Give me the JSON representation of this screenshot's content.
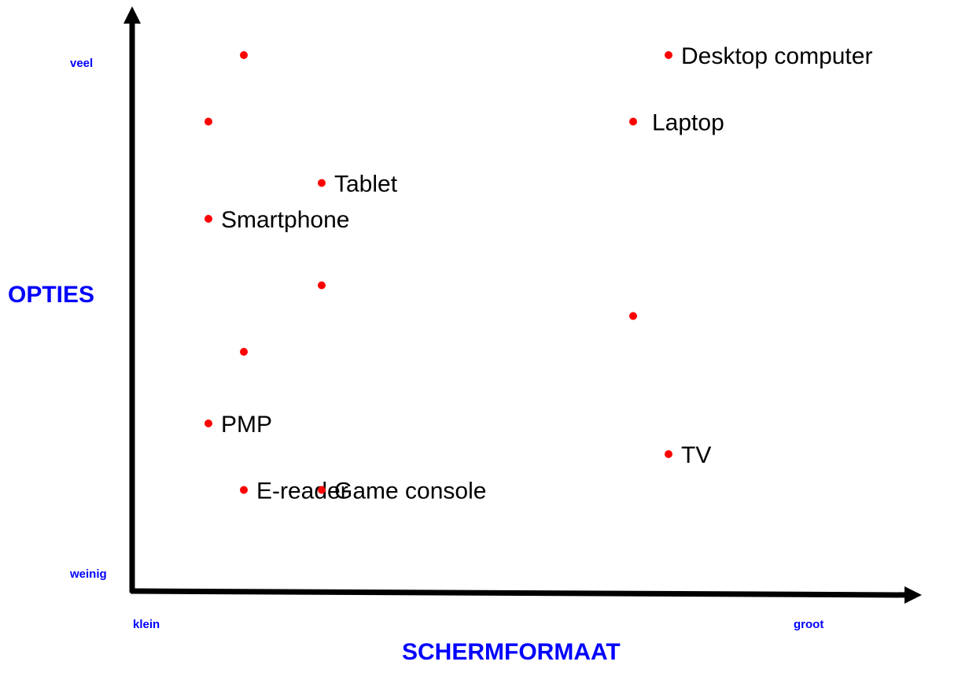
{
  "chart_data": {
    "type": "scatter",
    "xlabel": "SCHERMFORMAAT",
    "ylabel": "OPTIES",
    "x_min_label": "klein",
    "x_max_label": "groot",
    "y_min_label": "weinig",
    "y_max_label": "veel",
    "xlim": [
      0,
      10
    ],
    "ylim": [
      0,
      10
    ],
    "grid": false,
    "legend": "none",
    "colors": {
      "axis": "#000000",
      "axis_label": "#0000ff",
      "point": "#ff0000",
      "point_label": "#000000"
    },
    "points": [
      {
        "x": 1.5,
        "y": 10,
        "label": ""
      },
      {
        "x": 7.5,
        "y": 10,
        "label": "Desktop computer"
      },
      {
        "x": 1.0,
        "y": 8.7,
        "label": ""
      },
      {
        "x": 7.0,
        "y": 8.7,
        "label": "Laptop"
      },
      {
        "x": 2.6,
        "y": 7.5,
        "label": "Tablet"
      },
      {
        "x": 1.0,
        "y": 6.8,
        "label": "Smartphone"
      },
      {
        "x": 2.6,
        "y": 5.5,
        "label": ""
      },
      {
        "x": 7.0,
        "y": 4.9,
        "label": ""
      },
      {
        "x": 1.5,
        "y": 4.2,
        "label": ""
      },
      {
        "x": 1.0,
        "y": 2.8,
        "label": "PMP"
      },
      {
        "x": 7.5,
        "y": 2.2,
        "label": "TV"
      },
      {
        "x": 1.5,
        "y": 1.5,
        "label": "E-reader"
      },
      {
        "x": 2.6,
        "y": 1.5,
        "label": "Game console"
      }
    ]
  }
}
